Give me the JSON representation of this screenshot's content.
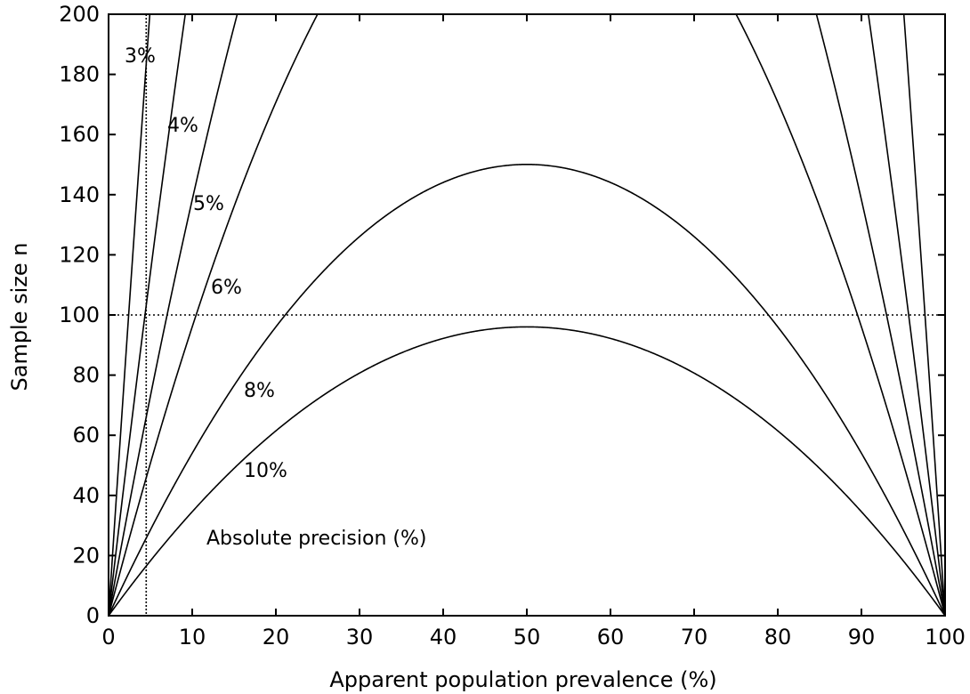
{
  "chart_data": {
    "type": "line",
    "title": "",
    "xlabel": "Apparent population prevalence (%)",
    "ylabel": "Sample size n",
    "xlim": [
      0,
      100
    ],
    "ylim": [
      0,
      200
    ],
    "xticks": [
      "0",
      "10",
      "20",
      "30",
      "40",
      "50",
      "60",
      "70",
      "80",
      "90",
      "100"
    ],
    "yticks": [
      "0",
      "20",
      "40",
      "60",
      "80",
      "100",
      "120",
      "140",
      "160",
      "180",
      "200"
    ],
    "grid": false,
    "series": [
      {
        "name": "3%",
        "formula_precision": 3
      },
      {
        "name": "4%",
        "formula_precision": 4
      },
      {
        "name": "5%",
        "formula_precision": 5
      },
      {
        "name": "6%",
        "formula_precision": 6
      },
      {
        "name": "8%",
        "formula_precision": 8
      },
      {
        "name": "10%",
        "formula_precision": 10
      }
    ],
    "reference_lines": {
      "horizontal_y": 100,
      "vertical_x": 4.5
    },
    "annotation": "Absolute precision (%)",
    "sample_points": {
      "x": [
        5,
        10,
        20,
        30,
        40,
        50,
        60,
        70,
        80,
        90,
        95
      ],
      "10%": [
        18,
        35,
        61,
        81,
        92,
        96,
        92,
        81,
        61,
        35,
        18
      ],
      "8%": [
        29,
        54,
        96,
        126,
        144,
        150,
        144,
        126,
        96,
        54,
        29
      ]
    }
  }
}
